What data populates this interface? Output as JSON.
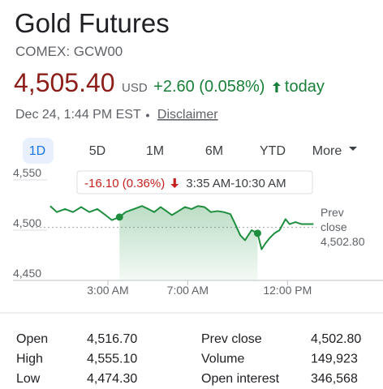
{
  "header": {
    "title": "Gold Futures",
    "exchange": "COMEX: GCW00",
    "price": "4,505.40",
    "currency": "USD",
    "change": "+2.60 (0.058%)",
    "period": "today",
    "timestamp": "Dec 24, 1:44 PM EST",
    "disclaimer": "Disclaimer"
  },
  "tabs": [
    "1D",
    "5D",
    "1M",
    "6M",
    "YTD",
    "More"
  ],
  "chart_data": {
    "type": "line",
    "color": "#1e8e3e",
    "x": [
      0.11,
      0.44,
      0.85,
      1.25,
      1.66,
      2.07,
      2.47,
      2.88,
      3.2,
      3.58,
      3.89,
      4.3,
      4.71,
      5.03,
      5.32,
      5.64,
      5.93,
      6.21,
      6.54,
      6.86,
      7.19,
      7.51,
      7.84,
      8.16,
      8.49,
      8.81,
      9.14,
      9.38,
      9.63,
      9.87,
      10.2,
      10.5,
      10.7,
      10.9,
      11.1,
      11.35,
      11.6,
      11.9,
      12.1,
      12.4,
      12.7,
      13.0,
      13.3
    ],
    "values": [
      4524,
      4518,
      4521,
      4518,
      4523,
      4518,
      4521,
      4515,
      4510,
      4513,
      4518,
      4521,
      4524,
      4521,
      4518,
      4523,
      4519,
      4515,
      4519,
      4523,
      4521,
      4524,
      4523,
      4518,
      4519,
      4518,
      4516,
      4506,
      4495,
      4490,
      4500,
      4496.9,
      4481,
      4487,
      4492,
      4497,
      4500,
      4511,
      4506,
      4508,
      4506,
      4506,
      4506
    ],
    "xlim": [
      -0.8,
      13.45
    ],
    "ylim": [
      4450,
      4560
    ],
    "xticks": [
      {
        "value": 3,
        "label": "3:00 AM"
      },
      {
        "value": 7,
        "label": "7:00 AM"
      },
      {
        "value": 12,
        "label": "12:00 PM"
      }
    ],
    "yticks": [
      {
        "value": 4450,
        "label": "4,450"
      },
      {
        "value": 4500,
        "label": "4,500"
      },
      {
        "value": 4550,
        "label": "4,550"
      }
    ],
    "highlight": {
      "from": 3.58,
      "to": 10.5,
      "change": "-16.10 (0.36%)",
      "range": "3:35 AM-10:30 AM"
    },
    "prev_close": {
      "value": 4502.8,
      "label": "4,502.80",
      "title": [
        "Prev",
        "close"
      ]
    }
  },
  "stats": [
    [
      "Open",
      "4,516.70",
      "Prev close",
      "4,502.80"
    ],
    [
      "High",
      "4,555.10",
      "Volume",
      "149,923"
    ],
    [
      "Low",
      "4,474.30",
      "Open interest",
      "346,568"
    ]
  ]
}
